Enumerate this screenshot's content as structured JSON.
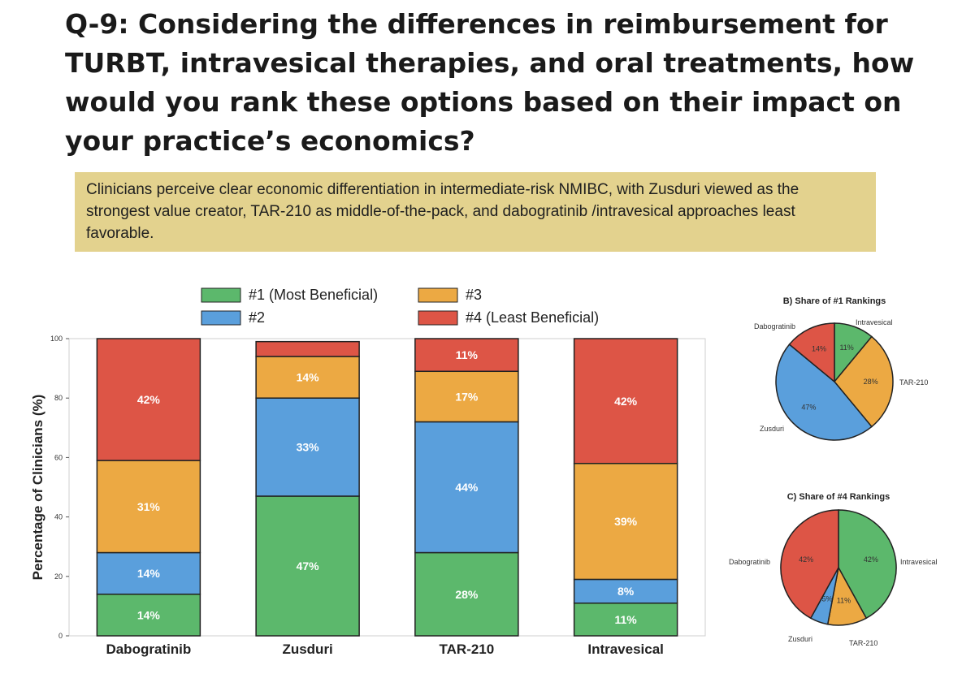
{
  "question": "Q-9: Considering the differences in reimbursement for TURBT, intravesical therapies, and oral treatments, how would you rank these options based on their impact on your practice’s economics?",
  "insight": "Clinicians perceive clear economic differentiation in intermediate-risk NMIBC, with Zusduri viewed as the strongest value creator, TAR-210 as middle-of-the-pack, and dabogratinib /intravesical approaches least favorable.",
  "colors": {
    "rank1": "#5cb86c",
    "rank2": "#5a9fdc",
    "rank3": "#eca943",
    "rank4": "#dd5546",
    "insight_bg": "#e3d28e"
  },
  "chart_data": [
    {
      "type": "bar",
      "stacked": true,
      "ylabel": "Percentage of Clinicians (%)",
      "ylim": [
        0,
        100
      ],
      "yticks": [
        0,
        20,
        40,
        60,
        80,
        100
      ],
      "grid": false,
      "legend_position": "top",
      "categories": [
        "Dabogratinib",
        "Zusduri",
        "TAR-210",
        "Intravesical"
      ],
      "series": [
        {
          "name": "#1 (Most Beneficial)",
          "values": [
            14,
            47,
            28,
            11
          ],
          "labels": [
            "14%",
            "47%",
            "28%",
            "11%"
          ]
        },
        {
          "name": "#2",
          "values": [
            14,
            33,
            44,
            8
          ],
          "labels": [
            "14%",
            "33%",
            "44%",
            "8%"
          ]
        },
        {
          "name": "#3",
          "values": [
            31,
            14,
            17,
            39
          ],
          "labels": [
            "31%",
            "14%",
            "17%",
            "39%"
          ]
        },
        {
          "name": "#4 (Least Beneficial)",
          "values": [
            42,
            5,
            11,
            42
          ],
          "labels": [
            "42%",
            "",
            "11%",
            "42%"
          ]
        }
      ]
    },
    {
      "type": "pie",
      "title": "B) Share of #1 Rankings",
      "slices": [
        {
          "label": "Intravesical",
          "value": 11,
          "pct": "11%"
        },
        {
          "label": "TAR-210",
          "value": 28,
          "pct": "28%"
        },
        {
          "label": "Zusduri",
          "value": 47,
          "pct": "47%"
        },
        {
          "label": "Dabogratinib",
          "value": 14,
          "pct": "14%"
        }
      ]
    },
    {
      "type": "pie",
      "title": "C) Share of #4 Rankings",
      "slices": [
        {
          "label": "Intravesical",
          "value": 42,
          "pct": "42%"
        },
        {
          "label": "TAR-210",
          "value": 11,
          "pct": "11%"
        },
        {
          "label": "Zusduri",
          "value": 5,
          "pct": "5%"
        },
        {
          "label": "Dabogratinib",
          "value": 42,
          "pct": "42%"
        }
      ]
    }
  ]
}
